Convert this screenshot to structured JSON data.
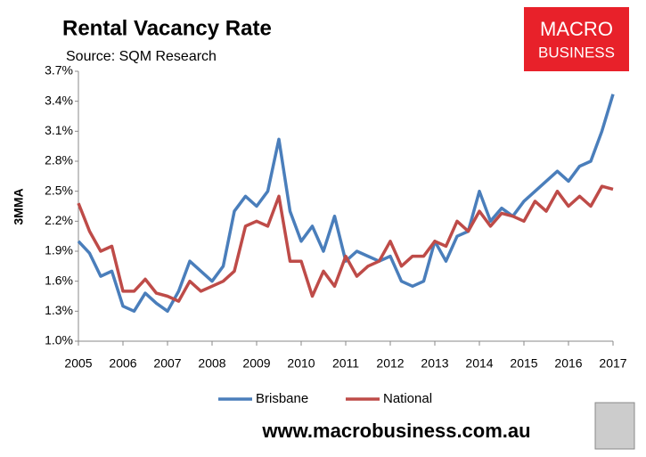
{
  "chart_data": {
    "type": "line",
    "title": "Rental Vacancy Rate",
    "subtitle": "Source: SQM Research",
    "y_label": "3MMA",
    "logo": [
      "MACRO",
      "BUSINESS"
    ],
    "footer": "www.macrobusiness.com.au",
    "x": [
      2005,
      2005.25,
      2005.5,
      2005.75,
      2006,
      2006.25,
      2006.5,
      2006.75,
      2007,
      2007.25,
      2007.5,
      2007.75,
      2008,
      2008.25,
      2008.5,
      2008.75,
      2009,
      2009.25,
      2009.5,
      2009.75,
      2010,
      2010.25,
      2010.5,
      2010.75,
      2011,
      2011.25,
      2011.5,
      2011.75,
      2012,
      2012.25,
      2012.5,
      2012.75,
      2013,
      2013.25,
      2013.5,
      2013.75,
      2014,
      2014.25,
      2014.5,
      2014.75,
      2015,
      2015.25,
      2015.5,
      2015.75,
      2016,
      2016.25,
      2016.5,
      2016.75,
      2017
    ],
    "series": [
      {
        "name": "Brisbane",
        "color": "#4a7ebb",
        "values": [
          2.0,
          1.88,
          1.65,
          1.7,
          1.35,
          1.3,
          1.48,
          1.38,
          1.3,
          1.5,
          1.8,
          1.7,
          1.6,
          1.75,
          2.3,
          2.45,
          2.35,
          2.5,
          3.02,
          2.3,
          2.0,
          2.15,
          1.9,
          2.25,
          1.8,
          1.9,
          1.85,
          1.8,
          1.85,
          1.6,
          1.55,
          1.6,
          2.0,
          1.8,
          2.05,
          2.1,
          2.5,
          2.2,
          2.33,
          2.25,
          2.4,
          2.5,
          2.6,
          2.7,
          2.6,
          2.75,
          2.8,
          3.1,
          3.47
        ]
      },
      {
        "name": "National",
        "color": "#be4b48",
        "values": [
          2.38,
          2.1,
          1.9,
          1.95,
          1.5,
          1.5,
          1.62,
          1.48,
          1.45,
          1.4,
          1.6,
          1.5,
          1.55,
          1.6,
          1.7,
          2.15,
          2.2,
          2.15,
          2.45,
          1.8,
          1.8,
          1.45,
          1.7,
          1.55,
          1.85,
          1.65,
          1.75,
          1.8,
          2.0,
          1.75,
          1.85,
          1.85,
          2.0,
          1.95,
          2.2,
          2.1,
          2.3,
          2.15,
          2.28,
          2.25,
          2.2,
          2.4,
          2.3,
          2.5,
          2.35,
          2.45,
          2.35,
          2.55,
          2.52
        ]
      }
    ],
    "xlim": [
      2005,
      2017
    ],
    "xticks": [
      2005,
      2006,
      2007,
      2008,
      2009,
      2010,
      2011,
      2012,
      2013,
      2014,
      2015,
      2016,
      2017
    ],
    "ylim": [
      1.0,
      3.7
    ],
    "yticks": [
      {
        "value": 1.0,
        "label": "1.0%"
      },
      {
        "value": 1.3,
        "label": "1.3%"
      },
      {
        "value": 1.6,
        "label": "1.6%"
      },
      {
        "value": 1.9,
        "label": "1.9%"
      },
      {
        "value": 2.2,
        "label": "2.2%"
      },
      {
        "value": 2.5,
        "label": "2.5%"
      },
      {
        "value": 2.8,
        "label": "2.8%"
      },
      {
        "value": 3.1,
        "label": "3.1%"
      },
      {
        "value": 3.4,
        "label": "3.4%"
      },
      {
        "value": 3.7,
        "label": "3.7%"
      }
    ],
    "grid": false,
    "legend": "bottom"
  }
}
